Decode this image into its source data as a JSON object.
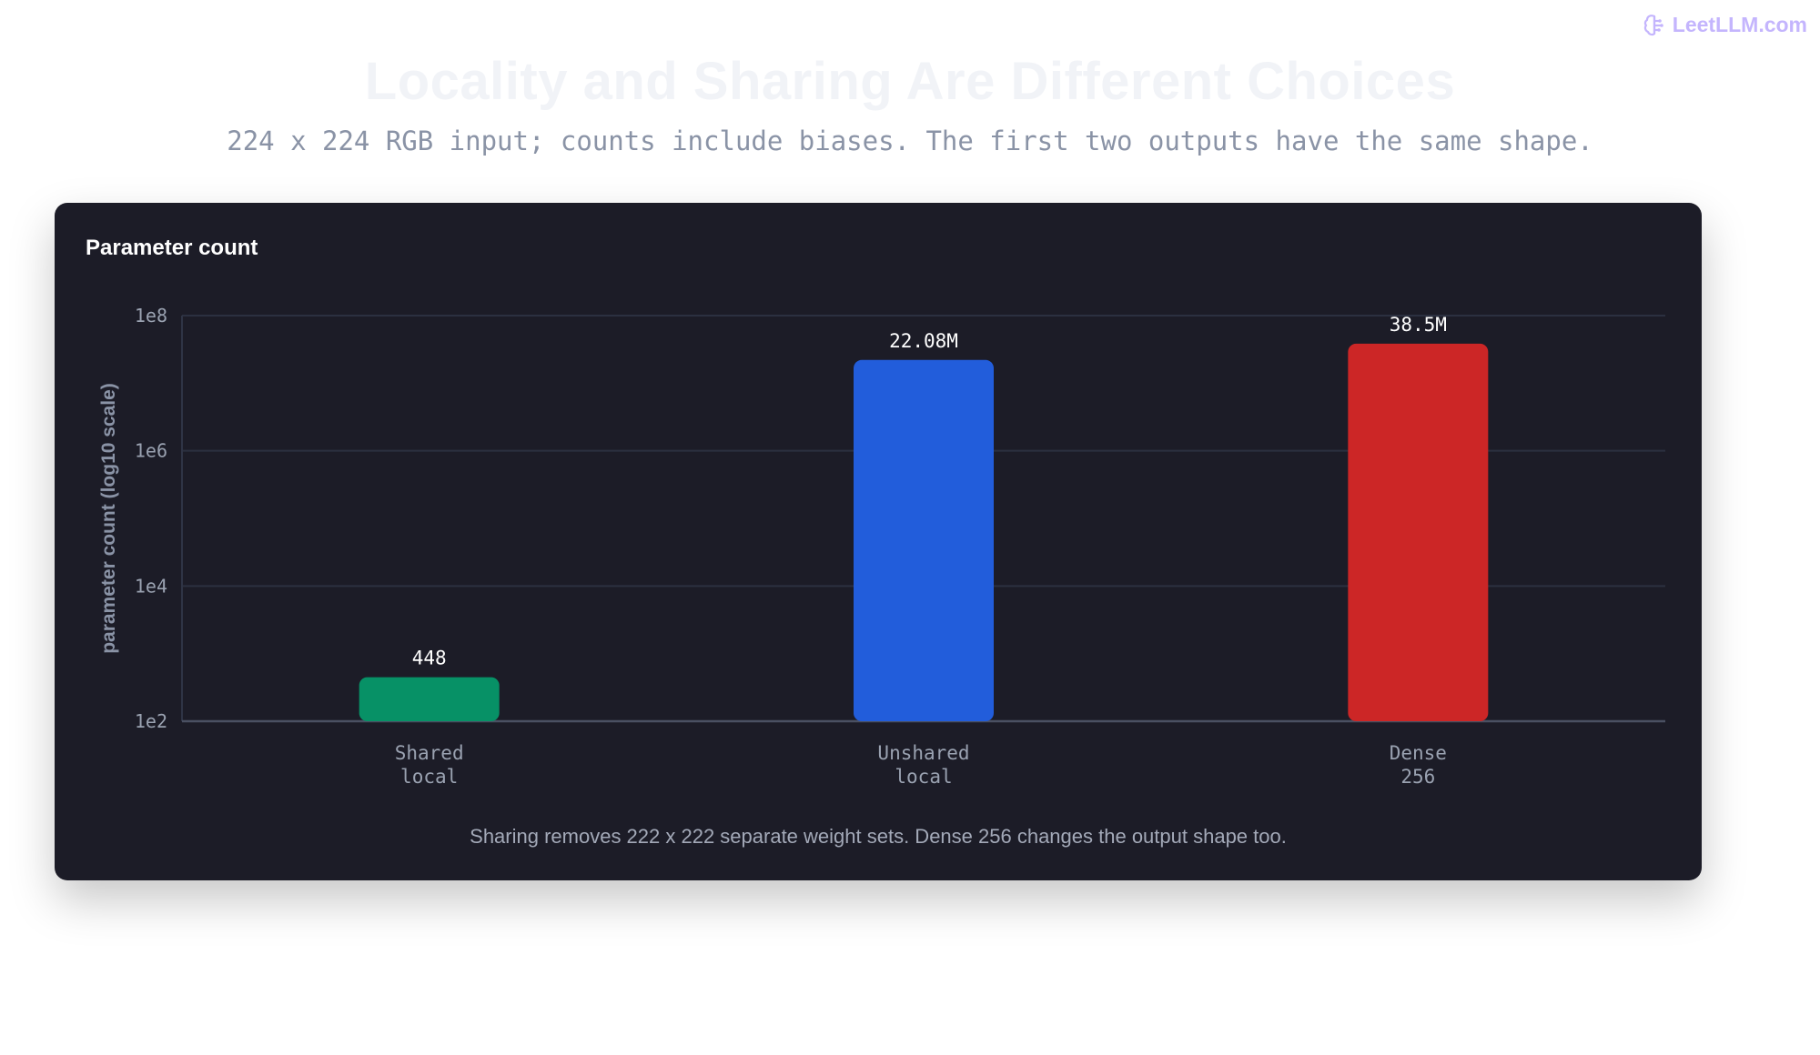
{
  "brand": {
    "name": "LeetLLM.com",
    "icon": "brain-icon",
    "color": "#c4b5fd"
  },
  "page_title": "Locality and Sharing Are Different Choices",
  "page_subtitle": "224 x 224 RGB input; counts include biases. The first two outputs have the same shape.",
  "card": {
    "title": "Parameter count",
    "caption": "Sharing removes 222 x 222 separate weight sets. Dense 256 changes the output shape too."
  },
  "chart_data": {
    "type": "bar",
    "title": "Parameter count",
    "xlabel": "",
    "ylabel": "parameter count (log10 scale)",
    "yscale": "log10",
    "ylim": [
      100,
      100000000
    ],
    "yticks": [
      100,
      10000,
      1000000,
      100000000
    ],
    "ytick_labels": [
      "1e2",
      "1e4",
      "1e6",
      "1e8"
    ],
    "grid": true,
    "categories": [
      [
        "Shared",
        "local"
      ],
      [
        "Unshared",
        "local"
      ],
      [
        "Dense",
        "256"
      ]
    ],
    "values": [
      448,
      22080000,
      38500000
    ],
    "value_labels": [
      "448",
      "22.08M",
      "38.5M"
    ],
    "colors": [
      "#079166",
      "#225ddb",
      "#cc2626"
    ]
  }
}
